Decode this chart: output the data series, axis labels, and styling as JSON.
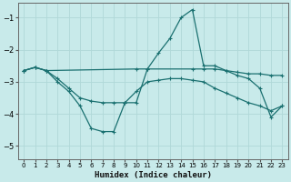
{
  "xlabel": "Humidex (Indice chaleur)",
  "bg_color": "#c8eaea",
  "grid_color": "#b0d8d8",
  "line_color": "#1a7070",
  "xlim": [
    -0.5,
    23.5
  ],
  "ylim": [
    -5.4,
    -0.55
  ],
  "yticks": [
    -5,
    -4,
    -3,
    -2,
    -1
  ],
  "xticks": [
    0,
    1,
    2,
    3,
    4,
    5,
    6,
    7,
    8,
    9,
    10,
    11,
    12,
    13,
    14,
    15,
    16,
    17,
    18,
    19,
    20,
    21,
    22,
    23
  ],
  "lines": [
    {
      "x": [
        0,
        1,
        2,
        10,
        11,
        15,
        16,
        17,
        18,
        19,
        20,
        21,
        22,
        23
      ],
      "y": [
        -2.65,
        -2.55,
        -2.65,
        -2.6,
        -2.6,
        -2.6,
        -2.6,
        -2.6,
        -2.65,
        -2.7,
        -2.75,
        -2.75,
        -2.8,
        -2.8
      ]
    },
    {
      "x": [
        0,
        1,
        2,
        3,
        4,
        5,
        6,
        7,
        8,
        9,
        10,
        11,
        12,
        13,
        14,
        15,
        16,
        17,
        18,
        19,
        20,
        21,
        22,
        23
      ],
      "y": [
        -2.65,
        -2.55,
        -2.65,
        -2.9,
        -3.2,
        -3.5,
        -3.6,
        -3.65,
        -3.65,
        -3.65,
        -3.3,
        -3.0,
        -2.95,
        -2.9,
        -2.9,
        -2.95,
        -3.0,
        -3.2,
        -3.35,
        -3.5,
        -3.65,
        -3.75,
        -3.9,
        -3.75
      ]
    },
    {
      "x": [
        0,
        1,
        2,
        3,
        4,
        5,
        6,
        7,
        8,
        9,
        10,
        11,
        12,
        13,
        14,
        15,
        16,
        17,
        18,
        19,
        20,
        21,
        22,
        23
      ],
      "y": [
        -2.65,
        -2.55,
        -2.65,
        -3.0,
        -3.3,
        -3.75,
        -4.45,
        -4.55,
        -4.55,
        -3.65,
        -3.65,
        -2.6,
        -2.1,
        -1.65,
        -1.0,
        -0.75,
        -2.5,
        -2.5,
        -2.65,
        -2.8,
        -2.9,
        -3.2,
        -4.1,
        -3.75
      ]
    }
  ]
}
